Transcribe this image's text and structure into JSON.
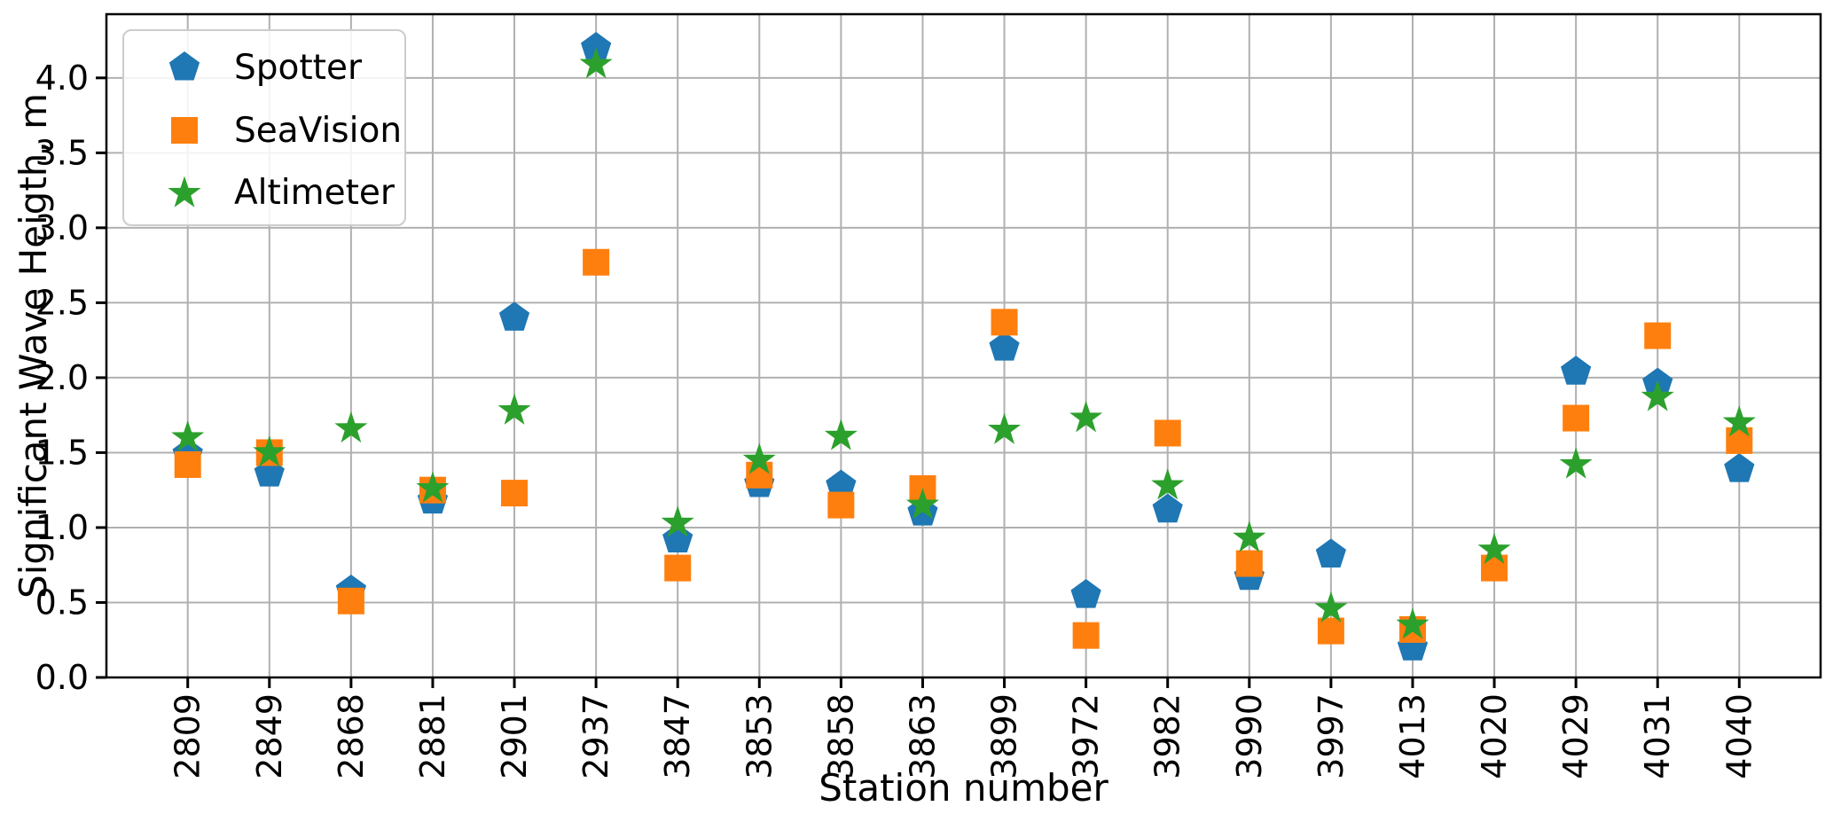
{
  "axes": {
    "xlabel": "Station number",
    "ylabel": "Significant Wave Heigth, m",
    "y_tick_labels": [
      "0.0",
      "0.5",
      "1.0",
      "1.5",
      "2.0",
      "2.5",
      "3.0",
      "3.5",
      "4.0"
    ]
  },
  "legend": {
    "position": "upper-left"
  },
  "colors": {
    "spotter_blue": "#1f77b4",
    "seavision_orange": "#ff7f0e",
    "altimeter_green": "#2ca02c",
    "grid": "#b0b0b0",
    "spine": "#000000",
    "text": "#000000",
    "legend_border": "#cccccc"
  },
  "chart_data": {
    "type": "scatter",
    "title": "",
    "xlabel": "Station number",
    "ylabel": "Significant Wave Heigth, m",
    "grid": true,
    "legend_position": "upper-left",
    "ylim": [
      0,
      4.425
    ],
    "y_tick_step": 0.5,
    "y_ticks": [
      0,
      0.5,
      1.0,
      1.5,
      2.0,
      2.5,
      3.0,
      3.5,
      4.0
    ],
    "categories": [
      "2809",
      "2849",
      "2868",
      "2881",
      "2901",
      "2937",
      "3847",
      "3853",
      "3858",
      "3863",
      "3899",
      "3972",
      "3982",
      "3990",
      "3997",
      "4013",
      "4020",
      "4029",
      "4031",
      "4040"
    ],
    "series": [
      {
        "name": "Spotter",
        "marker": "pentagon",
        "color": "#1f77b4",
        "values": [
          1.49,
          1.36,
          0.58,
          1.18,
          2.4,
          4.2,
          0.92,
          1.29,
          1.28,
          1.1,
          2.2,
          0.55,
          1.12,
          0.67,
          0.82,
          0.2,
          null,
          2.04,
          1.96,
          1.39
        ]
      },
      {
        "name": "SeaVision",
        "marker": "square",
        "color": "#ff7f0e",
        "values": [
          1.42,
          1.5,
          0.51,
          1.25,
          1.23,
          2.77,
          0.73,
          1.35,
          1.15,
          1.26,
          2.37,
          0.28,
          1.63,
          0.76,
          0.31,
          0.32,
          0.73,
          1.73,
          2.28,
          1.58
        ]
      },
      {
        "name": "Altimeter",
        "marker": "star",
        "color": "#2ca02c",
        "values": [
          1.6,
          1.5,
          1.66,
          1.26,
          1.78,
          4.09,
          1.03,
          1.45,
          1.61,
          1.15,
          1.65,
          1.73,
          1.28,
          0.93,
          0.46,
          0.35,
          0.85,
          1.42,
          1.87,
          1.7
        ]
      }
    ]
  }
}
